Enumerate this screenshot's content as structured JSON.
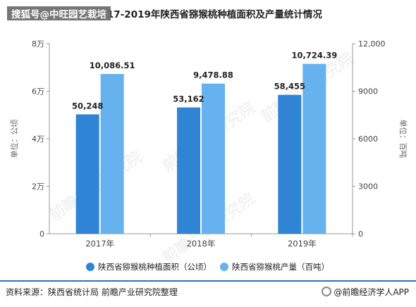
{
  "header": {
    "title": "2017-2019年陕西省猕猴桃种植面积及产量统计情况",
    "overlay_text": "搜狐号@中旺园艺栽培"
  },
  "footer": {
    "source": "资料来源：陕西省统计局 前瞻产业研究院整理",
    "credit": "@前瞻经济学人APP"
  },
  "watermark": "前瞻产业研究院",
  "colors": {
    "area": "#2f84d6",
    "yield": "#66b2ef",
    "axis": "#999999",
    "grid": "#e0e0e0"
  },
  "chart_data": {
    "type": "bar",
    "categories": [
      "2017年",
      "2018年",
      "2019年"
    ],
    "series": [
      {
        "name": "陕西省猕猴桃种植面积（公顷）",
        "axis": "left",
        "values": [
          50248,
          53162,
          58455
        ],
        "labels": [
          "50,248",
          "53,162",
          "58,455"
        ]
      },
      {
        "name": "陕西省猕猴桃产量（百吨）",
        "axis": "right",
        "values": [
          10086.51,
          9478.88,
          10724.39
        ],
        "labels": [
          "10,086.51",
          "9,478.88",
          "10,724.39"
        ]
      }
    ],
    "y_left": {
      "label": "单位：公顷",
      "ylim": [
        0,
        80000
      ],
      "ticks": [
        0,
        20000,
        40000,
        60000,
        80000
      ],
      "tick_labels": [
        "0",
        "2万",
        "4万",
        "6万",
        "8万"
      ]
    },
    "y_right": {
      "label": "单位：百吨",
      "ylim": [
        0,
        12000
      ],
      "ticks": [
        0,
        3000,
        6000,
        9000,
        12000
      ],
      "tick_labels": [
        "0",
        "3000",
        "6000",
        "9000",
        "12,000"
      ]
    },
    "legend_position": "bottom",
    "grid": false
  }
}
